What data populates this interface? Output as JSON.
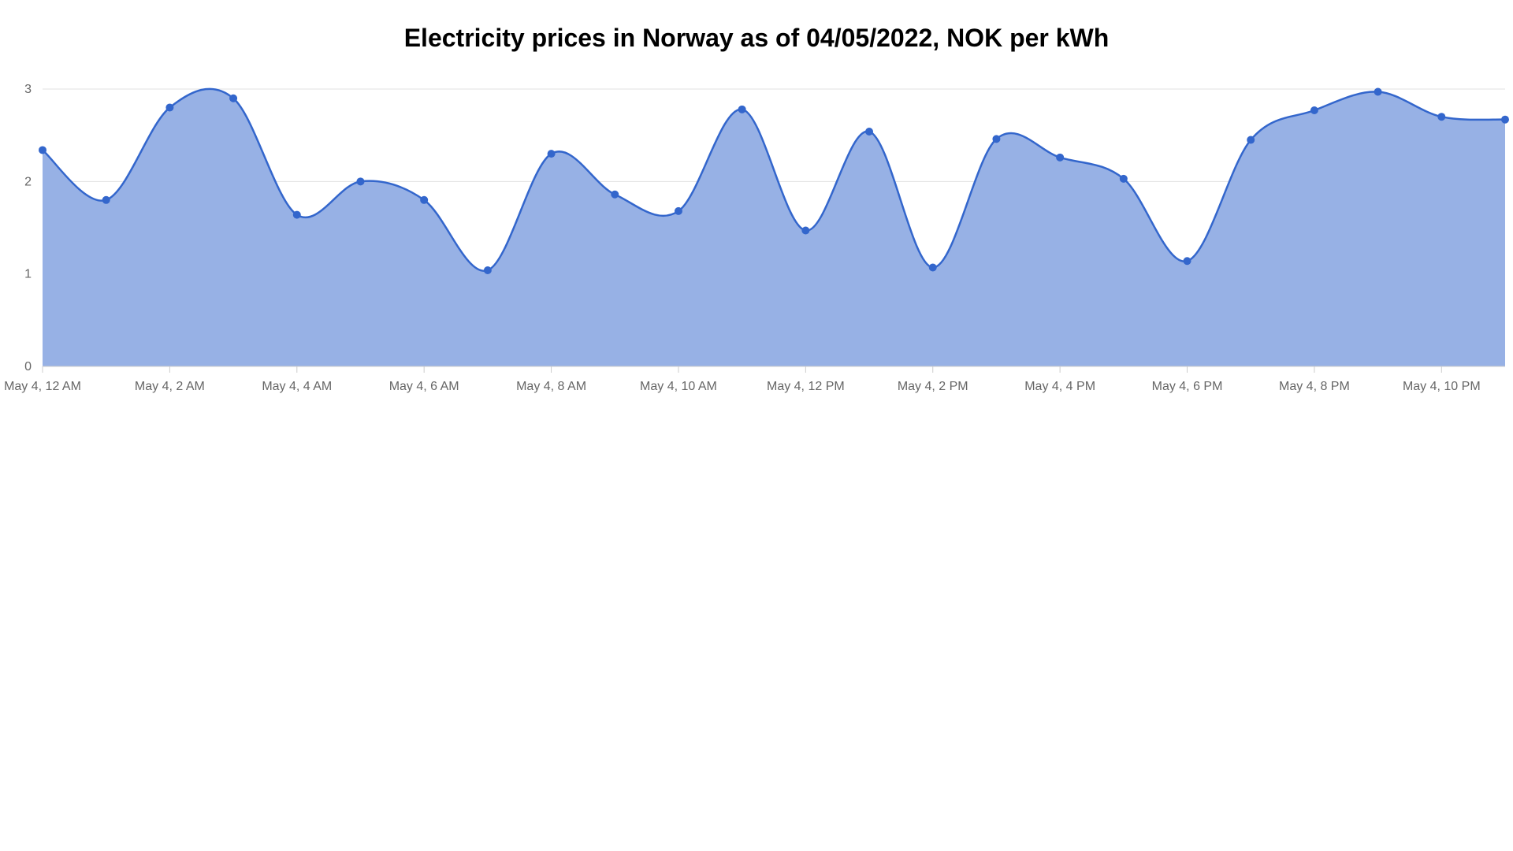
{
  "chart_data": {
    "type": "area",
    "title": "Electricity prices in Norway as of 04/05/2022, NOK per kWh",
    "xlabel": "",
    "ylabel": "",
    "x": [
      "May 4, 12 AM",
      "May 4, 1 AM",
      "May 4, 2 AM",
      "May 4, 3 AM",
      "May 4, 4 AM",
      "May 4, 5 AM",
      "May 4, 6 AM",
      "May 4, 7 AM",
      "May 4, 8 AM",
      "May 4, 9 AM",
      "May 4, 10 AM",
      "May 4, 11 AM",
      "May 4, 12 PM",
      "May 4, 1 PM",
      "May 4, 2 PM",
      "May 4, 3 PM",
      "May 4, 4 PM",
      "May 4, 5 PM",
      "May 4, 6 PM",
      "May 4, 7 PM",
      "May 4, 8 PM",
      "May 4, 9 PM",
      "May 4, 10 PM",
      "May 4, 11 PM"
    ],
    "x_tick_labels": [
      "May 4, 12 AM",
      "May 4, 2 AM",
      "May 4, 4 AM",
      "May 4, 6 AM",
      "May 4, 8 AM",
      "May 4, 10 AM",
      "May 4, 12 PM",
      "May 4, 2 PM",
      "May 4, 4 PM",
      "May 4, 6 PM",
      "May 4, 8 PM",
      "May 4, 10 PM"
    ],
    "values": [
      2.34,
      1.8,
      2.8,
      2.9,
      1.64,
      2.0,
      1.8,
      1.04,
      2.3,
      1.86,
      1.68,
      2.78,
      1.47,
      2.54,
      1.07,
      2.46,
      2.26,
      2.03,
      1.14,
      2.45,
      2.77,
      2.97,
      2.7,
      2.67
    ],
    "ylim": [
      0,
      3
    ],
    "y_ticks": [
      "0",
      "1",
      "2",
      "3"
    ],
    "grid": true,
    "legend": "none",
    "colors": {
      "line": "#3366cc",
      "fill": "#97b1e5",
      "grid": "#e0e0e0",
      "tick_text": "#666666",
      "title_text": "#000000"
    }
  }
}
